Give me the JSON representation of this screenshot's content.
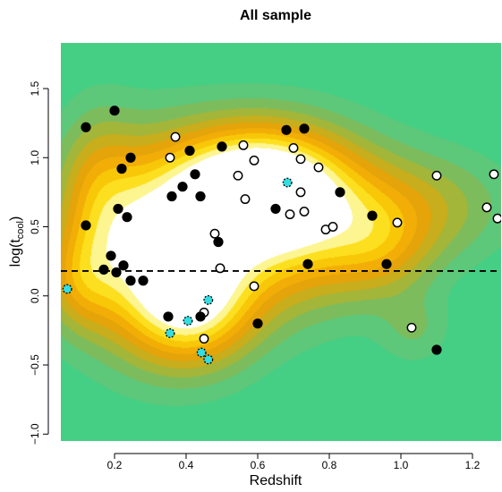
{
  "chart_data": {
    "type": "scatter",
    "title": "All sample",
    "xlabel": "Redshift",
    "ylabel_base": "log(t",
    "ylabel_sub": "cool",
    "ylabel_close": ")",
    "xlim": [
      0.05,
      1.28
    ],
    "ylim": [
      -1.05,
      1.83
    ],
    "xticks": [
      0.2,
      0.4,
      0.6,
      0.8,
      1.0,
      1.2
    ],
    "xtick_labels": [
      "0.2",
      "0.4",
      "0.6",
      "0.8",
      "1.0",
      "1.2"
    ],
    "yticks": [
      -1.0,
      -0.5,
      0.0,
      0.5,
      1.0,
      1.5
    ],
    "ytick_labels": [
      "−1.0",
      "−0.5",
      "0.0",
      "0.5",
      "1.0",
      "1.5"
    ],
    "threshold_line": 0.18,
    "colors": {
      "background": "#45cf84",
      "contour_levels": [
        "#5dc77a",
        "#7dbc5c",
        "#a3b63a",
        "#c8ad1c",
        "#e4a40a",
        "#f2ae06",
        "#f8c808",
        "#fce020",
        "#fdf590",
        "#ffffff"
      ],
      "point_filled": "#000000",
      "point_open": "#ffffff",
      "point_cyan": "#33dde0",
      "threshold": "#000000"
    },
    "density_blobs": [
      {
        "x": 0.3,
        "y": 0.35,
        "sx": 0.16,
        "sy": 0.5,
        "w": 0.95
      },
      {
        "x": 0.42,
        "y": -0.1,
        "sx": 0.12,
        "sy": 0.3,
        "w": 0.65
      },
      {
        "x": 0.6,
        "y": 0.82,
        "sx": 0.16,
        "sy": 0.3,
        "w": 1.0
      },
      {
        "x": 0.55,
        "y": 0.45,
        "sx": 0.18,
        "sy": 0.45,
        "w": 0.55
      },
      {
        "x": 0.8,
        "y": 0.55,
        "sx": 0.17,
        "sy": 0.4,
        "w": 0.6
      },
      {
        "x": 0.95,
        "y": 0.35,
        "sx": 0.1,
        "sy": 0.25,
        "w": 0.3
      },
      {
        "x": 1.1,
        "y": 0.65,
        "sx": 0.16,
        "sy": 0.28,
        "w": 0.32
      },
      {
        "x": 1.04,
        "y": -0.25,
        "sx": 0.07,
        "sy": 0.18,
        "w": 0.2
      },
      {
        "x": 0.15,
        "y": 0.8,
        "sx": 0.08,
        "sy": 0.4,
        "w": 0.35
      },
      {
        "x": 0.1,
        "y": 0.1,
        "sx": 0.07,
        "sy": 0.25,
        "w": 0.35
      }
    ],
    "points_filled": [
      {
        "x": 0.12,
        "y": 1.22
      },
      {
        "x": 0.2,
        "y": 1.34
      },
      {
        "x": 0.22,
        "y": 0.92
      },
      {
        "x": 0.245,
        "y": 1.0
      },
      {
        "x": 0.12,
        "y": 0.51
      },
      {
        "x": 0.21,
        "y": 0.63
      },
      {
        "x": 0.235,
        "y": 0.57
      },
      {
        "x": 0.17,
        "y": 0.19
      },
      {
        "x": 0.19,
        "y": 0.29
      },
      {
        "x": 0.205,
        "y": 0.17
      },
      {
        "x": 0.225,
        "y": 0.22
      },
      {
        "x": 0.245,
        "y": 0.11
      },
      {
        "x": 0.28,
        "y": 0.11
      },
      {
        "x": 0.35,
        "y": -0.15
      },
      {
        "x": 0.36,
        "y": 0.72
      },
      {
        "x": 0.39,
        "y": 0.79
      },
      {
        "x": 0.41,
        "y": 1.05
      },
      {
        "x": 0.425,
        "y": 0.88
      },
      {
        "x": 0.44,
        "y": 0.72
      },
      {
        "x": 0.5,
        "y": 1.08
      },
      {
        "x": 0.49,
        "y": 0.39
      },
      {
        "x": 0.44,
        "y": -0.15
      },
      {
        "x": 0.6,
        "y": -0.2
      },
      {
        "x": 0.65,
        "y": 0.63
      },
      {
        "x": 0.68,
        "y": 1.2
      },
      {
        "x": 0.73,
        "y": 1.21
      },
      {
        "x": 0.74,
        "y": 0.23
      },
      {
        "x": 0.83,
        "y": 0.75
      },
      {
        "x": 0.92,
        "y": 0.58
      },
      {
        "x": 0.96,
        "y": 0.23
      },
      {
        "x": 1.1,
        "y": -0.39
      }
    ],
    "points_open": [
      {
        "x": 0.355,
        "y": 1.0
      },
      {
        "x": 0.37,
        "y": 1.15
      },
      {
        "x": 0.56,
        "y": 1.09
      },
      {
        "x": 0.59,
        "y": 0.98
      },
      {
        "x": 0.545,
        "y": 0.87
      },
      {
        "x": 0.565,
        "y": 0.7
      },
      {
        "x": 0.7,
        "y": 1.07
      },
      {
        "x": 0.72,
        "y": 0.99
      },
      {
        "x": 0.77,
        "y": 0.93
      },
      {
        "x": 0.72,
        "y": 0.75
      },
      {
        "x": 0.69,
        "y": 0.59
      },
      {
        "x": 0.73,
        "y": 0.61
      },
      {
        "x": 0.79,
        "y": 0.48
      },
      {
        "x": 0.81,
        "y": 0.5
      },
      {
        "x": 0.48,
        "y": 0.45
      },
      {
        "x": 0.495,
        "y": 0.2
      },
      {
        "x": 0.59,
        "y": 0.07
      },
      {
        "x": 0.45,
        "y": -0.12
      },
      {
        "x": 0.45,
        "y": -0.31
      },
      {
        "x": 0.99,
        "y": 0.53
      },
      {
        "x": 1.03,
        "y": -0.23
      },
      {
        "x": 1.1,
        "y": 0.87
      },
      {
        "x": 1.24,
        "y": 0.64
      },
      {
        "x": 1.26,
        "y": 0.88
      },
      {
        "x": 1.27,
        "y": 0.56
      }
    ],
    "points_cyan": [
      {
        "x": 0.068,
        "y": 0.05
      },
      {
        "x": 0.355,
        "y": -0.27
      },
      {
        "x": 0.405,
        "y": -0.18
      },
      {
        "x": 0.462,
        "y": -0.03
      },
      {
        "x": 0.443,
        "y": -0.41
      },
      {
        "x": 0.462,
        "y": -0.46
      },
      {
        "x": 0.683,
        "y": 0.82
      }
    ]
  }
}
